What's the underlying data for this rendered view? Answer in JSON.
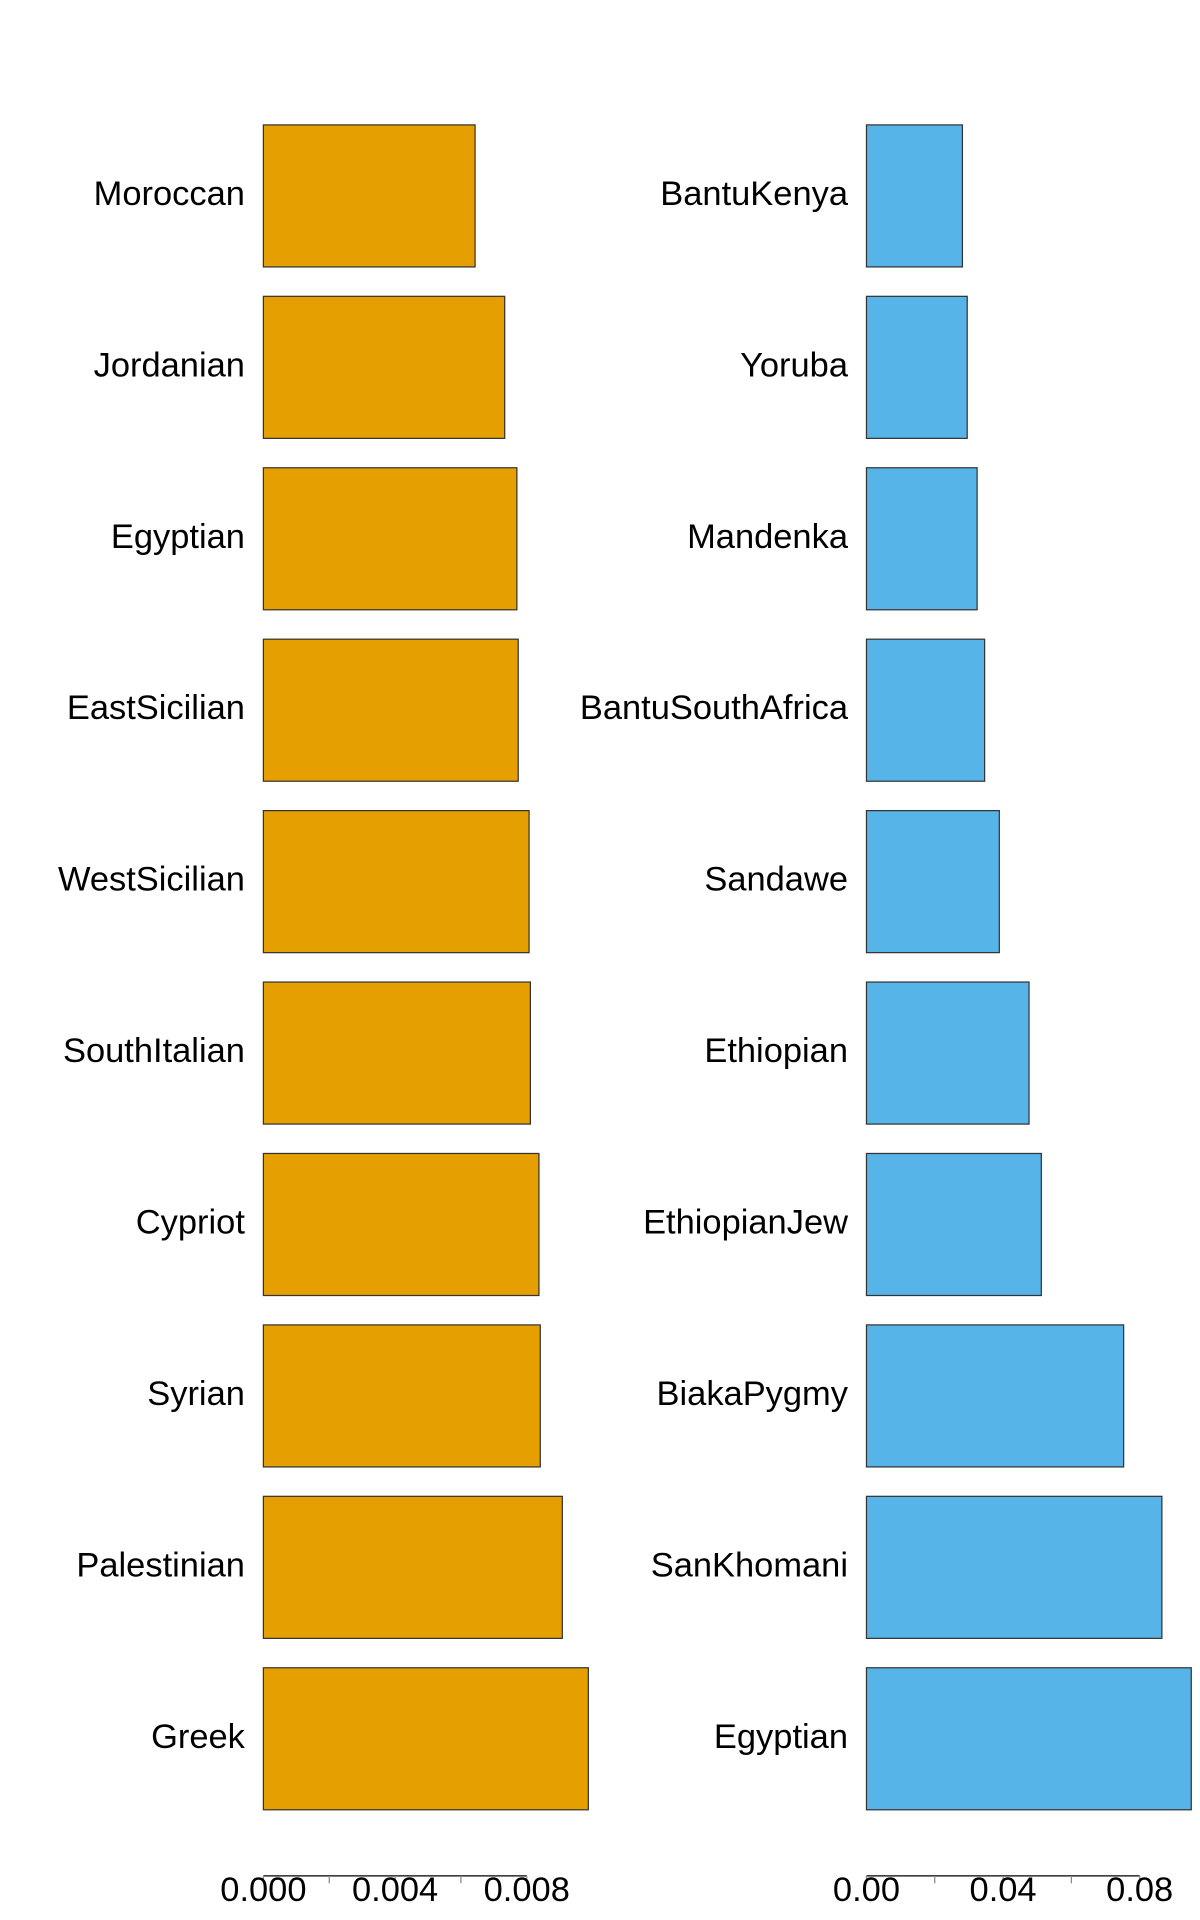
{
  "chart_data": [
    {
      "type": "barh",
      "categories": [
        "Moroccan",
        "Jordanian",
        "Egyptian",
        "EastSicilian",
        "WestSicilian",
        "SouthItalian",
        "Cypriot",
        "Syrian",
        "Palestinian",
        "Greek"
      ],
      "values": [
        0.00643,
        0.00733,
        0.0077,
        0.00774,
        0.00807,
        0.00811,
        0.00837,
        0.00841,
        0.00908,
        0.00987
      ],
      "color": "#e69f00",
      "xlim": [
        0,
        0.01
      ],
      "xticks": [
        {
          "value": 0,
          "label": "0.000"
        },
        0.004,
        0.008
      ],
      "xminorticks": [
        0.002,
        0.006
      ]
    },
    {
      "type": "barh",
      "categories": [
        "BantuKenya",
        "Yoruba",
        "Mandenka",
        "BantuSouthAfrica",
        "Sandawe",
        "Ethiopian",
        "EthiopianJew",
        "BiakaPygmy",
        "SanKhomani",
        "Egyptian"
      ],
      "values": [
        0.0281,
        0.0295,
        0.0324,
        0.0346,
        0.0389,
        0.0476,
        0.0512,
        0.0753,
        0.0865,
        0.0951
      ],
      "color": "#56b4e9",
      "xlim": [
        0,
        0.1
      ],
      "xticks": [
        {
          "value": 0,
          "label": "0.00"
        },
        0.04,
        0.08
      ],
      "xminorticks": [
        0.02,
        0.06
      ]
    }
  ]
}
